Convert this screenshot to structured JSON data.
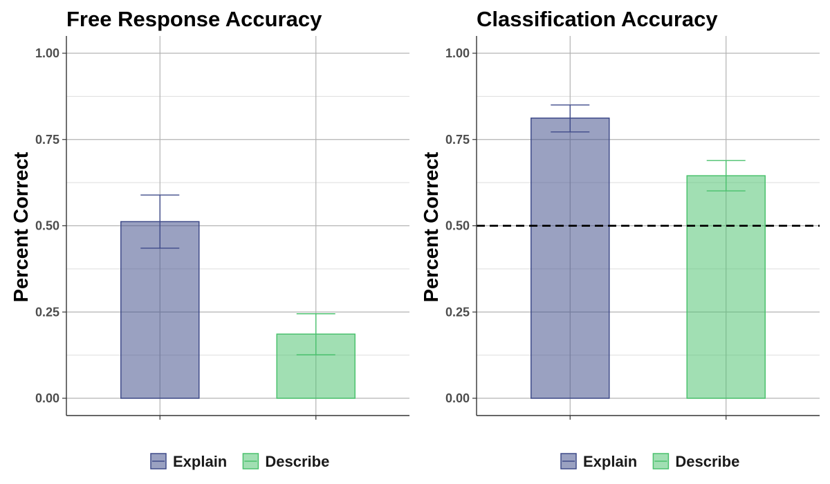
{
  "chart_data": [
    {
      "type": "bar",
      "title": "Free Response Accuracy",
      "xlabel": "",
      "ylabel": "Percent Correct",
      "ylim": [
        0,
        1.05
      ],
      "yticks": [
        0,
        0.25,
        0.5,
        0.75,
        1
      ],
      "ytick_labels": [
        "0.00",
        "0.25",
        "0.50",
        "0.75",
        "1.00"
      ],
      "grid": true,
      "legend_position": "bottom",
      "categories": [
        "Explain",
        "Describe"
      ],
      "values": [
        0.512,
        0.186
      ],
      "error_low": [
        0.435,
        0.126
      ],
      "error_high": [
        0.589,
        0.245
      ],
      "colors": [
        "#3e4a89",
        "#4ac16d"
      ],
      "reference_line": null
    },
    {
      "type": "bar",
      "title": "Classification Accuracy",
      "xlabel": "",
      "ylabel": "Percent Correct",
      "ylim": [
        0,
        1.05
      ],
      "yticks": [
        0,
        0.25,
        0.5,
        0.75,
        1
      ],
      "ytick_labels": [
        "0.00",
        "0.25",
        "0.50",
        "0.75",
        "1.00"
      ],
      "grid": true,
      "legend_position": "bottom",
      "categories": [
        "Explain",
        "Describe"
      ],
      "values": [
        0.812,
        0.645
      ],
      "error_low": [
        0.772,
        0.601
      ],
      "error_high": [
        0.85,
        0.689
      ],
      "colors": [
        "#3e4a89",
        "#4ac16d"
      ],
      "reference_line": 0.5
    }
  ]
}
